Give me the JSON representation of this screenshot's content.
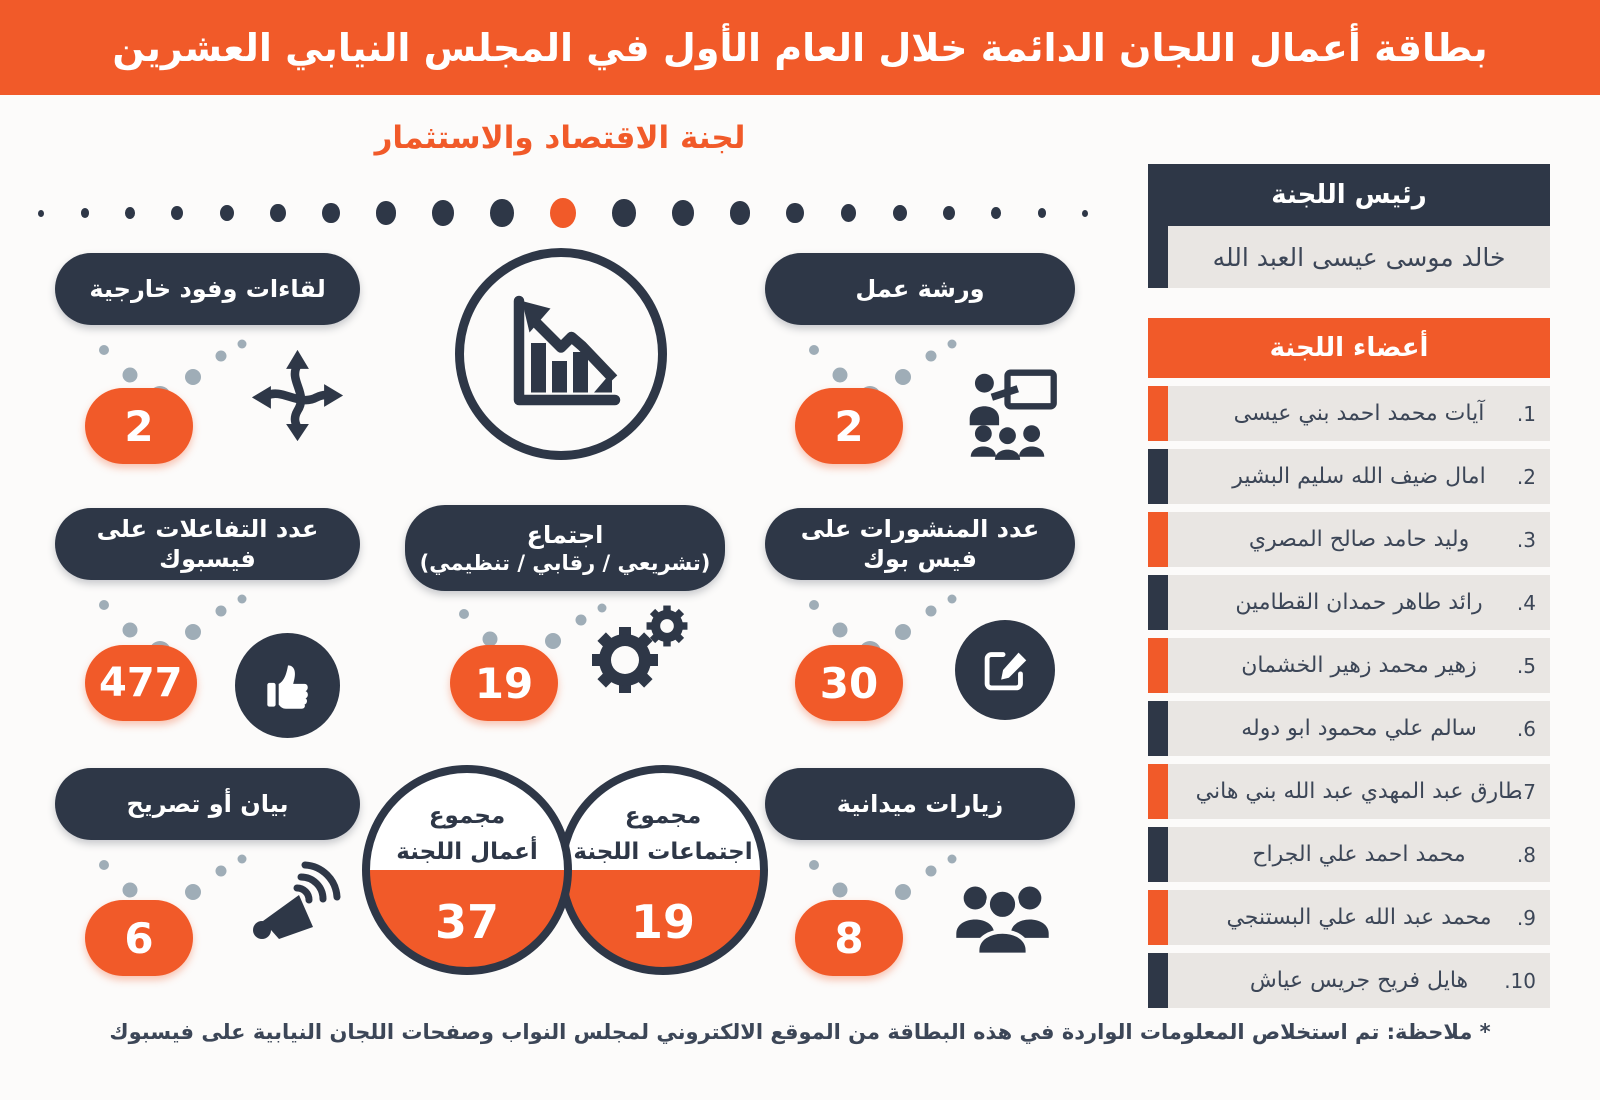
{
  "header": {
    "title": "بطاقة أعمال اللجان الدائمة خلال العام الأول في المجلس النيابي العشرين"
  },
  "subtitle": "لجنة الاقتصاد والاستثمار",
  "progress_dots": {
    "count": 21,
    "active_index": 10
  },
  "stats": {
    "external_meetings": {
      "label": "لقاءات وفود خارجية",
      "value": "2"
    },
    "workshop": {
      "label": "ورشة عمل",
      "value": "2"
    },
    "facebook_interactions": {
      "label": "عدد التفاعلات على فيسبوك",
      "value": "477"
    },
    "meetings": {
      "label_line1": "اجتماع",
      "label_line2": "(تشريعي / رقابي / تنظيمي)",
      "value": "19"
    },
    "facebook_posts": {
      "label": "عدد المنشورات على فيس بوك",
      "value": "30"
    },
    "statement": {
      "label": "بيان أو تصريح",
      "value": "6"
    },
    "field_visits": {
      "label": "زيارات ميدانية",
      "value": "8"
    }
  },
  "totals": {
    "committee_works": {
      "line1": "مجموع",
      "line2": "أعمال اللجنة",
      "value": "37"
    },
    "committee_meetings": {
      "line1": "مجموع",
      "line2": "اجتماعات اللجنة",
      "value": "19"
    }
  },
  "committee_panel": {
    "chair_header": "رئيس اللجنة",
    "chair_name": "خالد موسى عيسى العبد الله",
    "members_header": "أعضاء اللجنة",
    "members": [
      {
        "num": ".1",
        "name": "آيات محمد احمد بني عيسى"
      },
      {
        "num": ".2",
        "name": "امال ضيف الله سليم البشير"
      },
      {
        "num": ".3",
        "name": "وليد حامد صالح المصري"
      },
      {
        "num": ".4",
        "name": "رائد طاهر حمدان القطامين"
      },
      {
        "num": ".5",
        "name": "زهير محمد زهير الخشمان"
      },
      {
        "num": ".6",
        "name": "سالم علي محمود ابو دوله"
      },
      {
        "num": ".7",
        "name": "طارق عبد المهدي عبد الله بني هاني"
      },
      {
        "num": ".8",
        "name": "محمد احمد علي الجراح"
      },
      {
        "num": ".9",
        "name": "محمد عبد الله علي البستنجي"
      },
      {
        "num": ".10",
        "name": "هايل فريح جريس عياش"
      }
    ]
  },
  "footnote": "* ملاحظة: تم استخلاص المعلومات الواردة في هذه البطاقة من الموقع الالكتروني لمجلس النواب وصفحات اللجان النيابية على فيسبوك",
  "colors": {
    "accent": "#F15A29",
    "navy": "#2E3747",
    "dot_gray": "#9FADB7",
    "row_bg": "#E9E6E3"
  },
  "chart_data": {
    "type": "bar",
    "title": "بطاقة أعمال اللجان الدائمة خلال العام الأول في المجلس النيابي العشرين",
    "subtitle": "لجنة الاقتصاد والاستثمار",
    "categories": [
      "لقاءات وفود خارجية",
      "ورشة عمل",
      "عدد التفاعلات على فيسبوك",
      "اجتماع (تشريعي / رقابي / تنظيمي)",
      "عدد المنشورات على فيس بوك",
      "بيان أو تصريح",
      "زيارات ميدانية",
      "مجموع أعمال اللجنة",
      "مجموع اجتماعات اللجنة"
    ],
    "values": [
      2,
      2,
      477,
      19,
      30,
      6,
      8,
      37,
      19
    ]
  }
}
